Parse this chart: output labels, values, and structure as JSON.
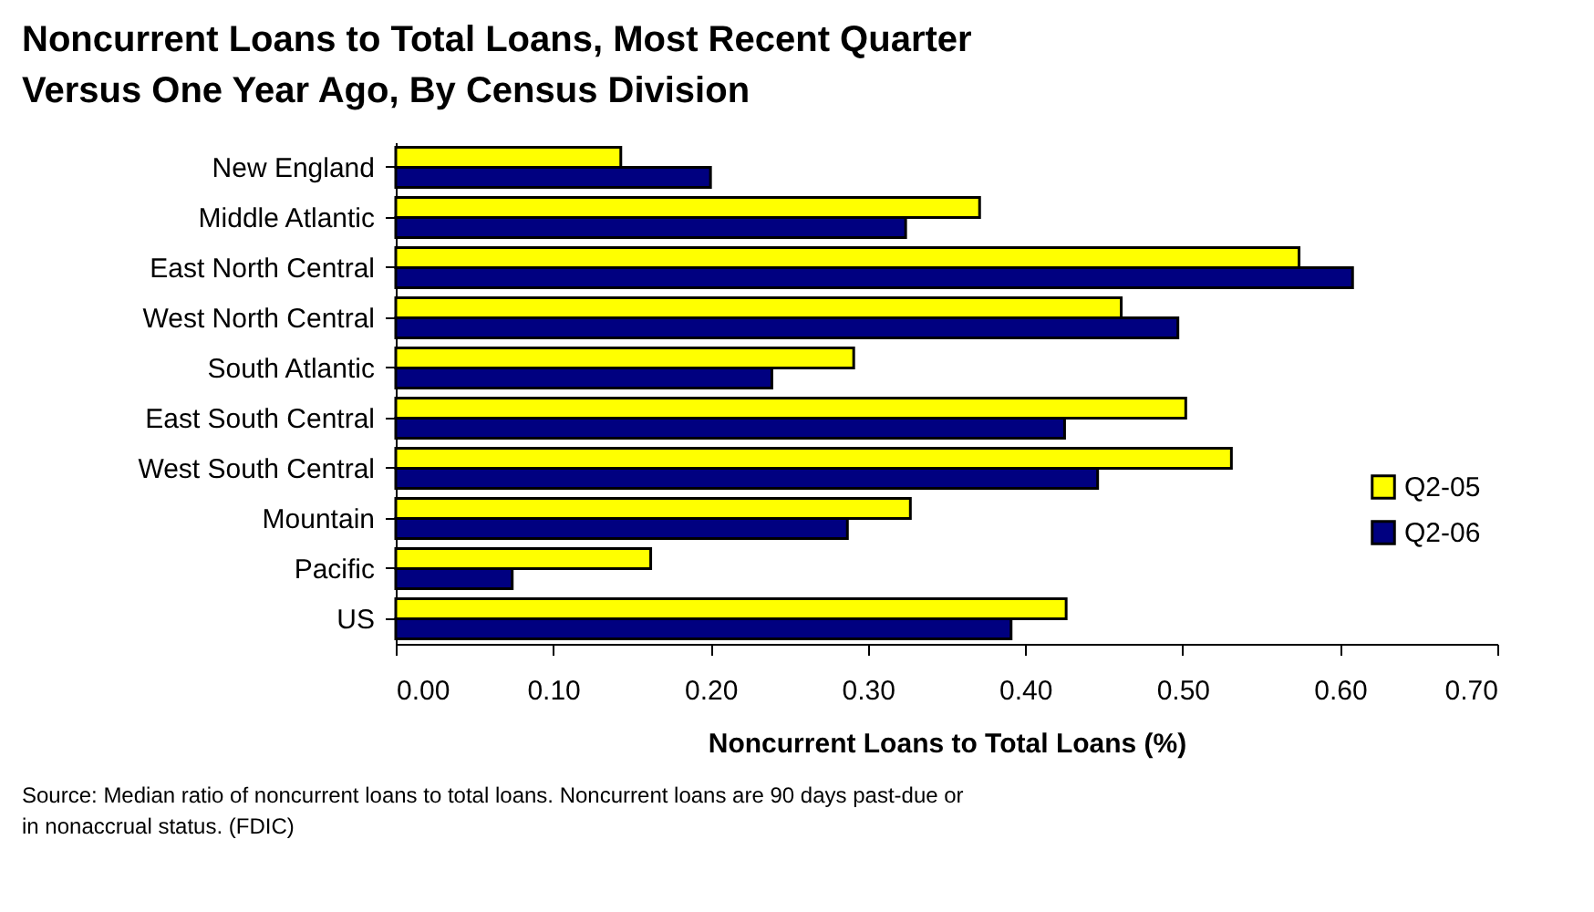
{
  "chart_data": {
    "type": "bar",
    "orientation": "horizontal",
    "title": "Noncurrent Loans to Total Loans, Most Recent Quarter Versus One Year Ago, By Census Division",
    "xlabel": "Noncurrent Loans to Total Loans (%)",
    "categories": [
      "New England",
      "Middle Atlantic",
      "East North Central",
      "West North Central",
      "South Atlantic",
      "East South Central",
      "West South Central",
      "Mountain",
      "Pacific",
      "US"
    ],
    "series": [
      {
        "name": "Q2-05",
        "color": "#ffff00",
        "values": [
          0.143,
          0.371,
          0.574,
          0.461,
          0.291,
          0.502,
          0.531,
          0.327,
          0.162,
          0.426
        ]
      },
      {
        "name": "Q2-06",
        "color": "#000080",
        "values": [
          0.2,
          0.324,
          0.608,
          0.497,
          0.239,
          0.425,
          0.446,
          0.287,
          0.074,
          0.391
        ]
      }
    ],
    "xlim": [
      0,
      0.7
    ],
    "xticks": [
      {
        "value": 0,
        "label": "0.00"
      },
      {
        "value": 0.1,
        "label": "0.10"
      },
      {
        "value": 0.2,
        "label": "0.20"
      },
      {
        "value": 0.3,
        "label": "0.30"
      },
      {
        "value": 0.4,
        "label": "0.40"
      },
      {
        "value": 0.5,
        "label": "0.50"
      },
      {
        "value": 0.6,
        "label": "0.60"
      },
      {
        "value": 0.7,
        "label": "0.70"
      }
    ],
    "grid": false,
    "legend": "right",
    "annotations": [
      "Source:  Median ratio of noncurrent loans to total loans. Noncurrent loans are 90 days past-due or in nonaccrual status. (FDIC)"
    ]
  }
}
